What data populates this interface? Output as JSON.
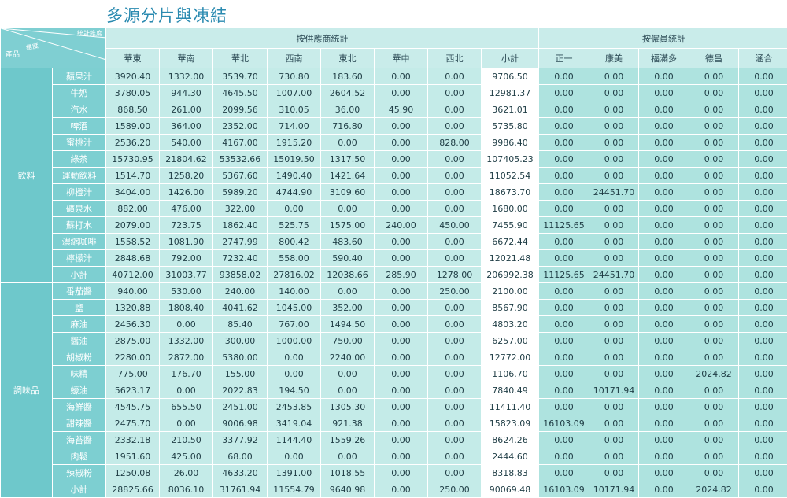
{
  "title": "多源分片與凍結",
  "corner": {
    "top_label": "統計維度",
    "mid_label": "維度",
    "left_label": "產品"
  },
  "groups": {
    "supplier": "按供應商統計",
    "employee": "按僱員統計"
  },
  "columns": {
    "supplier": [
      "華東",
      "華南",
      "華北",
      "西南",
      "東北",
      "華中",
      "西北",
      "小計"
    ],
    "employee": [
      "正一",
      "康美",
      "福滿多",
      "德昌",
      "涵合"
    ]
  },
  "categories": [
    {
      "name": "飲料",
      "rows": [
        {
          "product": "蘋果汁",
          "supplier": [
            "3920.40",
            "1332.00",
            "3539.70",
            "730.80",
            "183.60",
            "0.00",
            "0.00",
            "9706.50"
          ],
          "employee": [
            "0.00",
            "0.00",
            "0.00",
            "0.00",
            "0.00"
          ]
        },
        {
          "product": "牛奶",
          "supplier": [
            "3780.05",
            "944.30",
            "4645.50",
            "1007.00",
            "2604.52",
            "0.00",
            "0.00",
            "12981.37"
          ],
          "employee": [
            "0.00",
            "0.00",
            "0.00",
            "0.00",
            "0.00"
          ]
        },
        {
          "product": "汽水",
          "supplier": [
            "868.50",
            "261.00",
            "2099.56",
            "310.05",
            "36.00",
            "45.90",
            "0.00",
            "3621.01"
          ],
          "employee": [
            "0.00",
            "0.00",
            "0.00",
            "0.00",
            "0.00"
          ]
        },
        {
          "product": "啤酒",
          "supplier": [
            "1589.00",
            "364.00",
            "2352.00",
            "714.00",
            "716.80",
            "0.00",
            "0.00",
            "5735.80"
          ],
          "employee": [
            "0.00",
            "0.00",
            "0.00",
            "0.00",
            "0.00"
          ]
        },
        {
          "product": "蜜桃汁",
          "supplier": [
            "2536.20",
            "540.00",
            "4167.00",
            "1915.20",
            "0.00",
            "0.00",
            "828.00",
            "9986.40"
          ],
          "employee": [
            "0.00",
            "0.00",
            "0.00",
            "0.00",
            "0.00"
          ]
        },
        {
          "product": "綠茶",
          "supplier": [
            "15730.95",
            "21804.62",
            "53532.66",
            "15019.50",
            "1317.50",
            "0.00",
            "0.00",
            "107405.23"
          ],
          "employee": [
            "0.00",
            "0.00",
            "0.00",
            "0.00",
            "0.00"
          ]
        },
        {
          "product": "運動飲料",
          "supplier": [
            "1514.70",
            "1258.20",
            "5367.60",
            "1490.40",
            "1421.64",
            "0.00",
            "0.00",
            "11052.54"
          ],
          "employee": [
            "0.00",
            "0.00",
            "0.00",
            "0.00",
            "0.00"
          ]
        },
        {
          "product": "柳橙汁",
          "supplier": [
            "3404.00",
            "1426.00",
            "5989.20",
            "4744.90",
            "3109.60",
            "0.00",
            "0.00",
            "18673.70"
          ],
          "employee": [
            "0.00",
            "24451.70",
            "0.00",
            "0.00",
            "0.00"
          ]
        },
        {
          "product": "礦泉水",
          "supplier": [
            "882.00",
            "476.00",
            "322.00",
            "0.00",
            "0.00",
            "0.00",
            "0.00",
            "1680.00"
          ],
          "employee": [
            "0.00",
            "0.00",
            "0.00",
            "0.00",
            "0.00"
          ]
        },
        {
          "product": "蘇打水",
          "supplier": [
            "2079.00",
            "723.75",
            "1862.40",
            "525.75",
            "1575.00",
            "240.00",
            "450.00",
            "7455.90"
          ],
          "employee": [
            "11125.65",
            "0.00",
            "0.00",
            "0.00",
            "0.00"
          ]
        },
        {
          "product": "濃縮咖啡",
          "supplier": [
            "1558.52",
            "1081.90",
            "2747.99",
            "800.42",
            "483.60",
            "0.00",
            "0.00",
            "6672.44"
          ],
          "employee": [
            "0.00",
            "0.00",
            "0.00",
            "0.00",
            "0.00"
          ]
        },
        {
          "product": "檸檬汁",
          "supplier": [
            "2848.68",
            "792.00",
            "7232.40",
            "558.00",
            "590.40",
            "0.00",
            "0.00",
            "12021.48"
          ],
          "employee": [
            "0.00",
            "0.00",
            "0.00",
            "0.00",
            "0.00"
          ]
        },
        {
          "product": "小計",
          "supplier": [
            "40712.00",
            "31003.77",
            "93858.02",
            "27816.02",
            "12038.66",
            "285.90",
            "1278.00",
            "206992.38"
          ],
          "employee": [
            "11125.65",
            "24451.70",
            "0.00",
            "0.00",
            "0.00"
          ]
        }
      ]
    },
    {
      "name": "調味品",
      "rows": [
        {
          "product": "番茄醬",
          "supplier": [
            "940.00",
            "530.00",
            "240.00",
            "140.00",
            "0.00",
            "0.00",
            "250.00",
            "2100.00"
          ],
          "employee": [
            "0.00",
            "0.00",
            "0.00",
            "0.00",
            "0.00"
          ]
        },
        {
          "product": "鹽",
          "supplier": [
            "1320.88",
            "1808.40",
            "4041.62",
            "1045.00",
            "352.00",
            "0.00",
            "0.00",
            "8567.90"
          ],
          "employee": [
            "0.00",
            "0.00",
            "0.00",
            "0.00",
            "0.00"
          ]
        },
        {
          "product": "麻油",
          "supplier": [
            "2456.30",
            "0.00",
            "85.40",
            "767.00",
            "1494.50",
            "0.00",
            "0.00",
            "4803.20"
          ],
          "employee": [
            "0.00",
            "0.00",
            "0.00",
            "0.00",
            "0.00"
          ]
        },
        {
          "product": "醬油",
          "supplier": [
            "2875.00",
            "1332.00",
            "300.00",
            "1000.00",
            "750.00",
            "0.00",
            "0.00",
            "6257.00"
          ],
          "employee": [
            "0.00",
            "0.00",
            "0.00",
            "0.00",
            "0.00"
          ]
        },
        {
          "product": "胡椒粉",
          "supplier": [
            "2280.00",
            "2872.00",
            "5380.00",
            "0.00",
            "2240.00",
            "0.00",
            "0.00",
            "12772.00"
          ],
          "employee": [
            "0.00",
            "0.00",
            "0.00",
            "0.00",
            "0.00"
          ]
        },
        {
          "product": "味精",
          "supplier": [
            "775.00",
            "176.70",
            "155.00",
            "0.00",
            "0.00",
            "0.00",
            "0.00",
            "1106.70"
          ],
          "employee": [
            "0.00",
            "0.00",
            "0.00",
            "2024.82",
            "0.00"
          ]
        },
        {
          "product": "蠔油",
          "supplier": [
            "5623.17",
            "0.00",
            "2022.83",
            "194.50",
            "0.00",
            "0.00",
            "0.00",
            "7840.49"
          ],
          "employee": [
            "0.00",
            "10171.94",
            "0.00",
            "0.00",
            "0.00"
          ]
        },
        {
          "product": "海鮮醬",
          "supplier": [
            "4545.75",
            "655.50",
            "2451.00",
            "2453.85",
            "1305.30",
            "0.00",
            "0.00",
            "11411.40"
          ],
          "employee": [
            "0.00",
            "0.00",
            "0.00",
            "0.00",
            "0.00"
          ]
        },
        {
          "product": "甜辣醬",
          "supplier": [
            "2475.70",
            "0.00",
            "9006.98",
            "3419.04",
            "921.38",
            "0.00",
            "0.00",
            "15823.09"
          ],
          "employee": [
            "16103.09",
            "0.00",
            "0.00",
            "0.00",
            "0.00"
          ]
        },
        {
          "product": "海苔醬",
          "supplier": [
            "2332.18",
            "210.50",
            "3377.92",
            "1144.40",
            "1559.26",
            "0.00",
            "0.00",
            "8624.26"
          ],
          "employee": [
            "0.00",
            "0.00",
            "0.00",
            "0.00",
            "0.00"
          ]
        },
        {
          "product": "肉鬆",
          "supplier": [
            "1951.60",
            "425.00",
            "68.00",
            "0.00",
            "0.00",
            "0.00",
            "0.00",
            "2444.60"
          ],
          "employee": [
            "0.00",
            "0.00",
            "0.00",
            "0.00",
            "0.00"
          ]
        },
        {
          "product": "辣椒粉",
          "supplier": [
            "1250.08",
            "26.00",
            "4633.20",
            "1391.00",
            "1018.55",
            "0.00",
            "0.00",
            "8318.83"
          ],
          "employee": [
            "0.00",
            "0.00",
            "0.00",
            "0.00",
            "0.00"
          ]
        },
        {
          "product": "小計",
          "supplier": [
            "28825.66",
            "8036.10",
            "31761.94",
            "11554.79",
            "9640.98",
            "0.00",
            "250.00",
            "90069.48"
          ],
          "employee": [
            "16103.09",
            "10171.94",
            "0.00",
            "2024.82",
            "0.00"
          ]
        }
      ]
    }
  ]
}
